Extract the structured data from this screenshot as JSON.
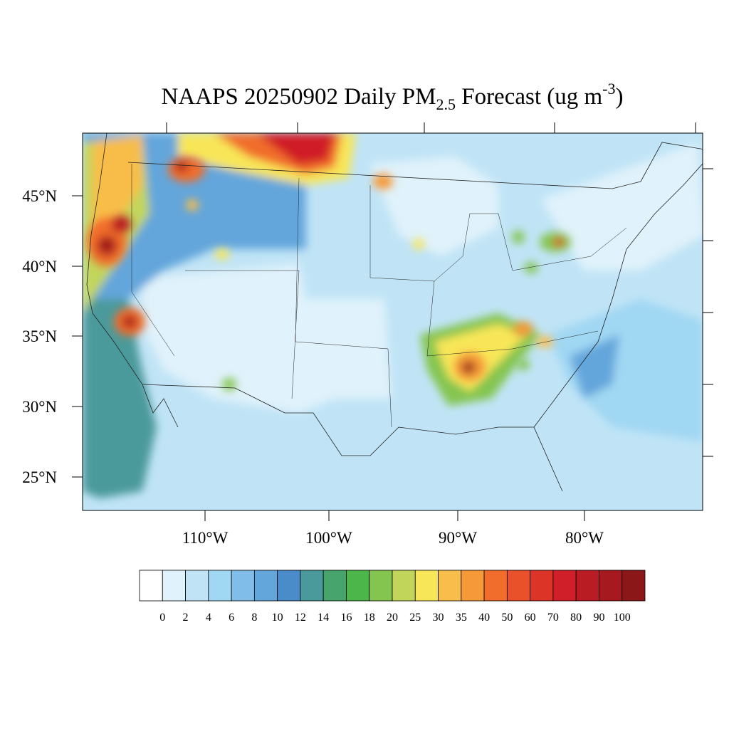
{
  "title": {
    "main": "NAAPS 20250902 Daily PM",
    "subscript": "2.5",
    "middle": " Forecast (ug m",
    "superscript": "-3",
    "end": ")"
  },
  "latitude_labels": [
    "45°N",
    "40°N",
    "35°N",
    "30°N",
    "25°N"
  ],
  "longitude_labels": [
    "110°W",
    "100°W",
    "90°W",
    "80°W"
  ],
  "colorbar": {
    "levels": [
      0,
      2,
      4,
      6,
      8,
      10,
      12,
      14,
      16,
      18,
      20,
      25,
      30,
      35,
      40,
      50,
      60,
      70,
      80,
      90,
      100
    ],
    "colors": [
      "#ffffff",
      "#e0f2fb",
      "#c0e4f6",
      "#a0d7f3",
      "#80bde8",
      "#63a6db",
      "#4a8bc9",
      "#4b9a9b",
      "#46a46c",
      "#4cb64a",
      "#84c54f",
      "#c2d55b",
      "#f8e659",
      "#f8bd4a",
      "#f59939",
      "#f16d2b",
      "#e8512a",
      "#dc3527",
      "#d01f28",
      "#ba1c24",
      "#a61a1f",
      "#8c1719"
    ]
  }
}
